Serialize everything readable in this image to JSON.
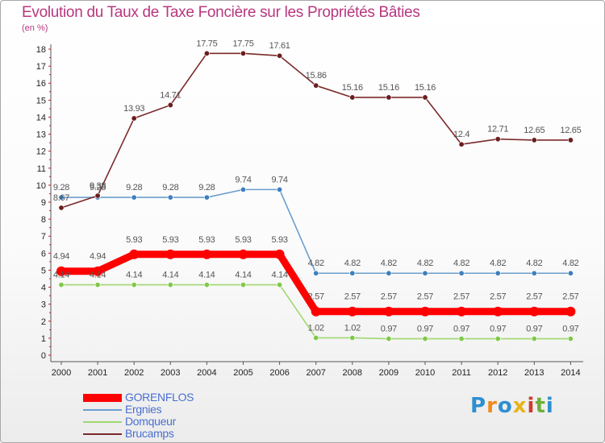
{
  "chart_data": {
    "type": "line",
    "title": "Evolution du Taux de Taxe Foncière sur les Propriétés Bâties",
    "subtitle": "(en %)",
    "xlabel": "",
    "ylabel": "(en %)",
    "ylim": [
      0,
      18
    ],
    "grid": false,
    "legend_position": "bottom-left",
    "y_ticks": [
      "0",
      "1",
      "2",
      "3",
      "4",
      "5",
      "6",
      "7",
      "8",
      "9",
      "10",
      "11",
      "12",
      "13",
      "14",
      "15",
      "16",
      "17",
      "18"
    ],
    "categories": [
      "2000",
      "2001",
      "2002",
      "2003",
      "2004",
      "2005",
      "2006",
      "2007",
      "2008",
      "2009",
      "2010",
      "2011",
      "2012",
      "2013",
      "2014"
    ],
    "series": [
      {
        "name": "GORENFLOS",
        "color": "#ff0000",
        "marker": "#ff0000",
        "values": [
          4.94,
          4.94,
          5.93,
          5.93,
          5.93,
          5.93,
          5.93,
          2.57,
          2.57,
          2.57,
          2.57,
          2.57,
          2.57,
          2.57,
          2.57
        ],
        "labels": [
          "4.94",
          "4.94",
          "5.93",
          "5.93",
          "5.93",
          "5.93",
          "5.93",
          "2.57",
          "2.57",
          "2.57",
          "2.57",
          "2.57",
          "2.57",
          "2.57",
          "2.57"
        ]
      },
      {
        "name": "Ergnies",
        "color": "#6a9fcf",
        "marker": "#3d7fbf",
        "values": [
          9.28,
          9.28,
          9.28,
          9.28,
          9.28,
          9.74,
          9.74,
          4.82,
          4.82,
          4.82,
          4.82,
          4.82,
          4.82,
          4.82,
          4.82
        ],
        "labels": [
          "9.28",
          "9.28",
          "9.28",
          "9.28",
          "9.28",
          "9.74",
          "9.74",
          "4.82",
          "4.82",
          "4.82",
          "4.82",
          "4.82",
          "4.82",
          "4.82",
          "4.82"
        ]
      },
      {
        "name": "Domqueur",
        "color": "#a0d870",
        "marker": "#7fc94a",
        "values": [
          4.14,
          4.14,
          4.14,
          4.14,
          4.14,
          4.14,
          4.14,
          1.02,
          1.02,
          0.97,
          0.97,
          0.97,
          0.97,
          0.97,
          0.97
        ],
        "labels": [
          "4.14",
          "4.14",
          "4.14",
          "4.14",
          "4.14",
          "4.14",
          "4.14",
          "1.02",
          "1.02",
          "0.97",
          "0.97",
          "0.97",
          "0.97",
          "0.97",
          "0.97"
        ]
      },
      {
        "name": "Brucamps",
        "color": "#7b2a2a",
        "marker": "#6a1e1e",
        "values": [
          8.67,
          9.38,
          13.93,
          14.71,
          17.75,
          17.75,
          17.61,
          15.86,
          15.16,
          15.16,
          15.16,
          12.4,
          12.71,
          12.65,
          12.65
        ],
        "labels": [
          "8.67",
          "9.38",
          "13.93",
          "14.71",
          "17.75",
          "17.75",
          "17.61",
          "15.86",
          "15.16",
          "15.16",
          "15.16",
          "12.4",
          "12.71",
          "12.65",
          "12.65"
        ]
      }
    ]
  },
  "brand": {
    "name": "Proxiti",
    "letters": [
      "P",
      "r",
      "o",
      "x",
      "i",
      "t",
      "i"
    ],
    "colors": [
      "#2e8fd0",
      "#f08a1c",
      "#2e8fd0",
      "#e8b41a",
      "#d23b2b",
      "#6fb03a",
      "#2e8fd0"
    ]
  }
}
